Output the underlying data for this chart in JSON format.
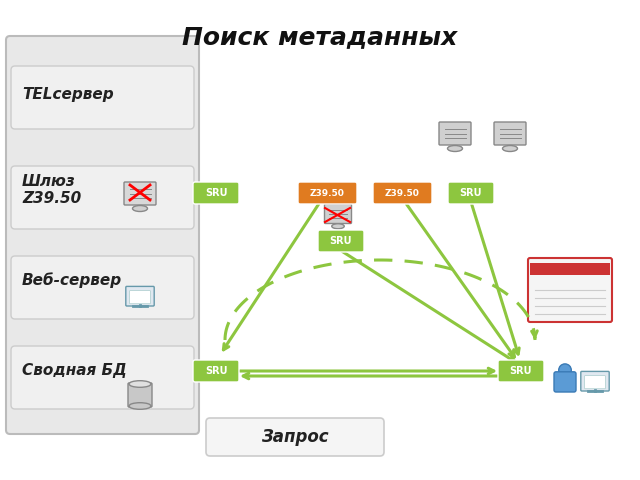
{
  "title": "Поиск метаданных",
  "bg_color": "#ffffff",
  "left_panel_color": "#e8e8e8",
  "left_panel_border": "#cccccc",
  "box_green_color": "#8dc63f",
  "box_orange_color": "#e07b20",
  "arrow_green": "#8dc63f",
  "arrow_dashed_green": "#8dc63f",
  "labels_left": [
    "TELсервер",
    "Шлюз\nZ39.50",
    "Веб-сервер",
    "Сводная БД"
  ],
  "label_bottom": "Запрос",
  "sru_label": "SRU",
  "z3950_label": "Z39.50",
  "protocol_labels": {
    "box1": "SRU",
    "box2_top_left": "Z39.50",
    "box2_top_right": "Z39.50",
    "box2_bottom": "SRU",
    "box3": "SRU",
    "box4": "SRU",
    "box5": "SRU"
  }
}
